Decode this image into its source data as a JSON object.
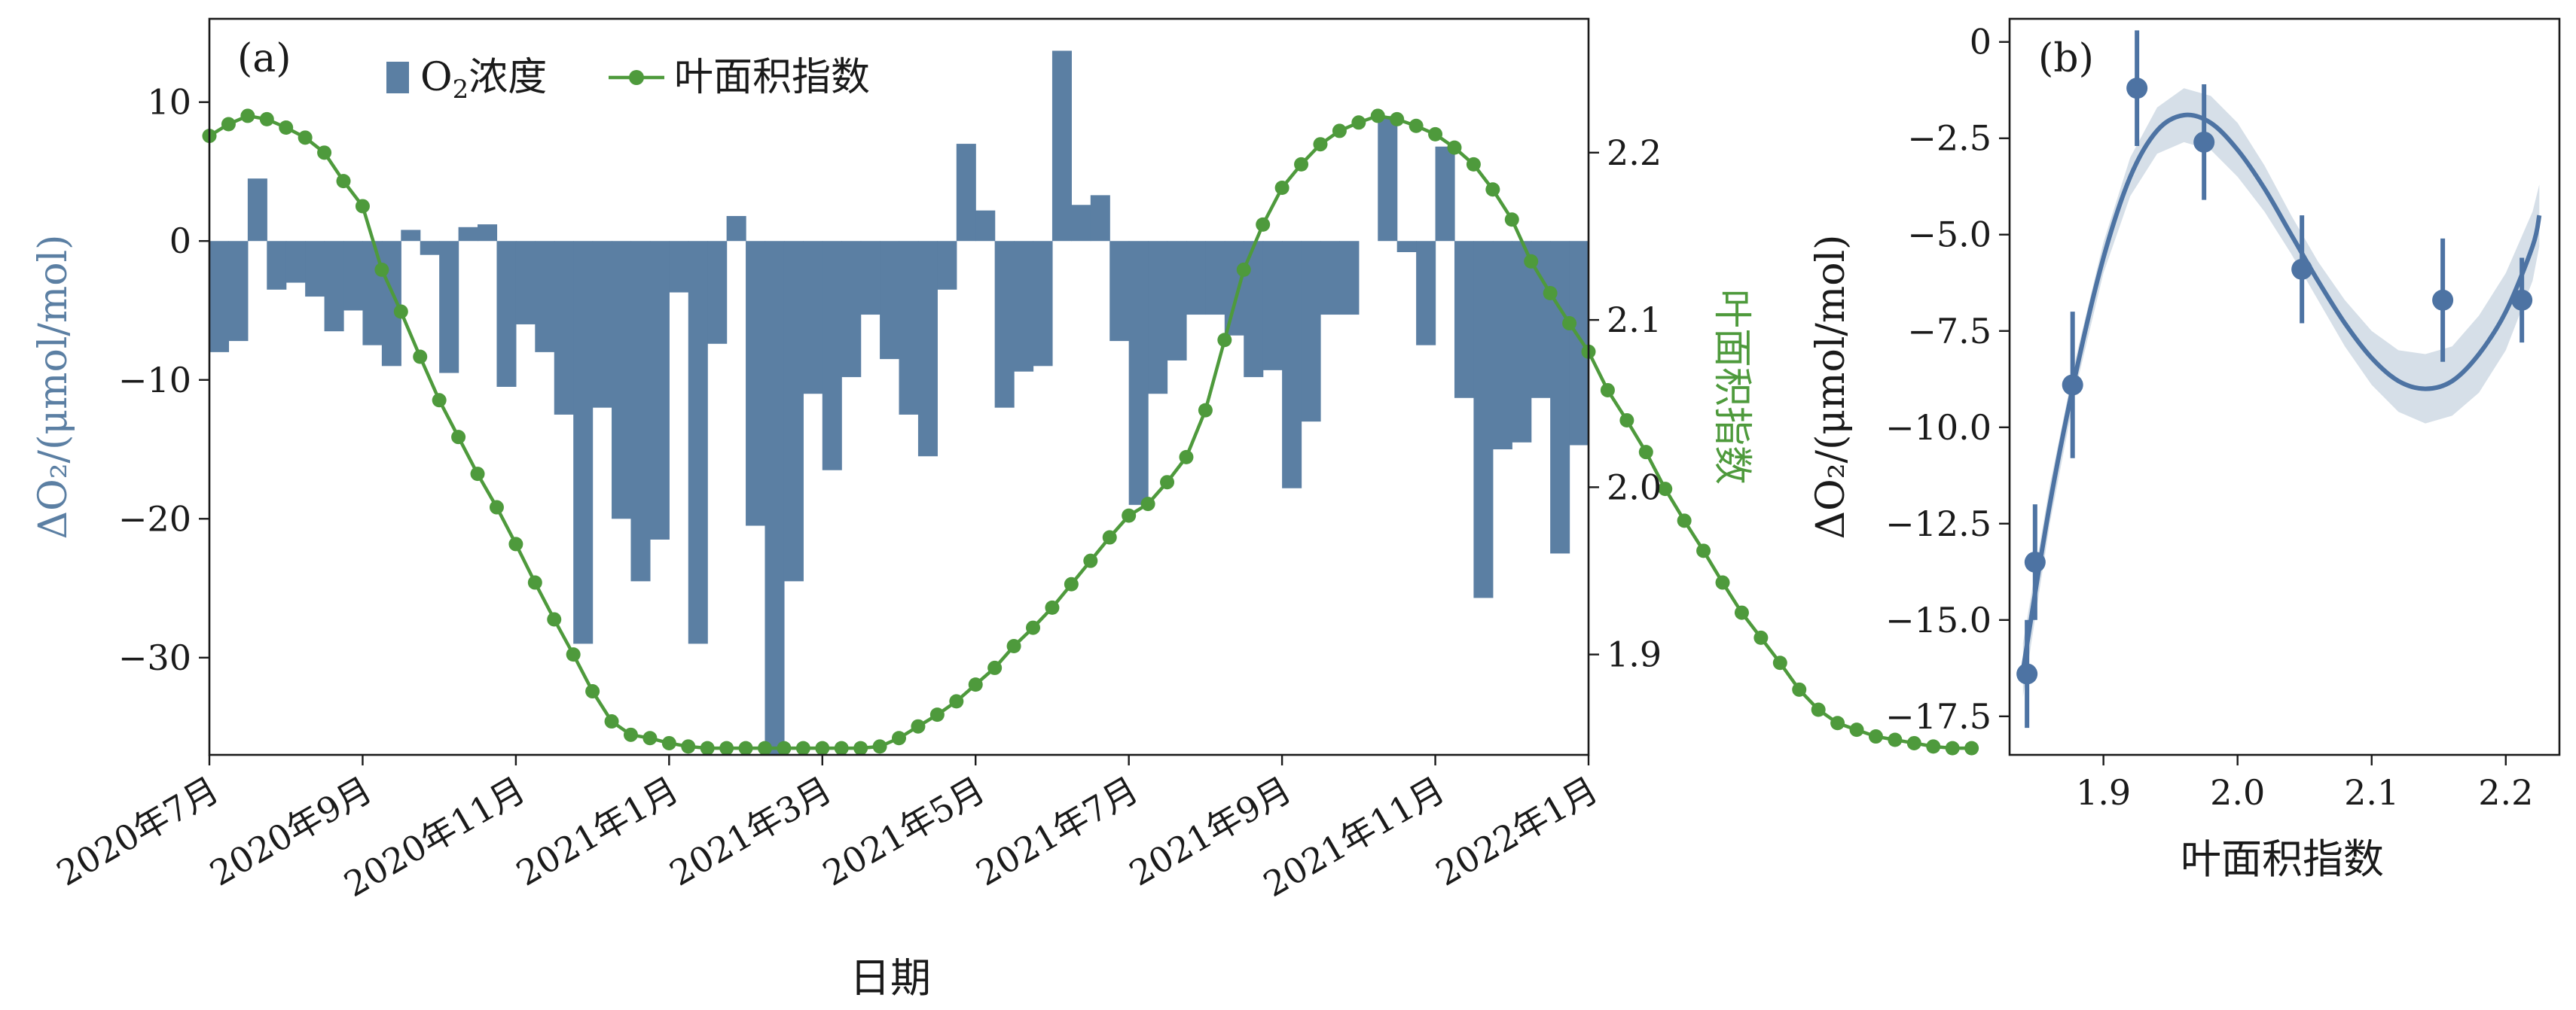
{
  "chart_data": [
    {
      "type": "bar+line",
      "panel_label": "(a)",
      "xlabel": "日期",
      "ylabel_left": "ΔO₂/(μmol/mol)",
      "ylabel_right": "叶面积指数",
      "x_tick_labels": [
        "2020年7月",
        "2020年9月",
        "2020年11月",
        "2021年1月",
        "2021年3月",
        "2021年5月",
        "2021年7月",
        "2021年9月",
        "2021年11月",
        "2022年1月"
      ],
      "x_range_months": [
        0,
        18
      ],
      "y_left": {
        "ylim": [
          -37,
          16
        ],
        "ticks": [
          10,
          0,
          -10,
          -20,
          -30
        ],
        "tick_labels": [
          "10",
          "0",
          "−10",
          "−20",
          "−30"
        ]
      },
      "y_right": {
        "ylim": [
          1.84,
          2.28
        ],
        "ticks": [
          2.2,
          2.1,
          2.0,
          1.9
        ],
        "tick_labels": [
          "2.2",
          "2.1",
          "2.0",
          "1.9"
        ]
      },
      "legend": {
        "placement": "top-left",
        "items": [
          {
            "label_main": "O",
            "label_sub": "2",
            "label_rest": "浓度",
            "color": "#5b7fa3",
            "kind": "bar"
          },
          {
            "label_main": "叶面积指数",
            "color": "#4e9a3c",
            "kind": "line-marker"
          }
        ]
      },
      "series": [
        {
          "name": "O₂浓度",
          "bar_width_months": 0.25,
          "values": [
            -8,
            -7.2,
            4.5,
            -3.5,
            -3,
            -4,
            -6.5,
            -5,
            -7.5,
            -9,
            0.8,
            -1,
            -9.5,
            1,
            1.2,
            -10.5,
            -6,
            -8,
            -12.5,
            -29,
            -12,
            -20,
            -24.5,
            -21.5,
            -3.7,
            -29,
            -7.4,
            1.8,
            -20.5,
            -37,
            -24.5,
            -11,
            -16.5,
            -9.8,
            -5.3,
            -8.5,
            -12.5,
            -15.5,
            -3.5,
            7,
            2.2,
            -12,
            -9.4,
            -9,
            13.7,
            2.6,
            3.3,
            -7.2,
            -19,
            -11,
            -8.6,
            -5.3,
            -5.3,
            -6.8,
            -9.8,
            -9.3,
            -17.8,
            -13,
            -5.3,
            -5.3,
            0,
            9,
            -0.8,
            -7.5,
            6.8,
            -11.3,
            -25.7,
            -15,
            -14.5,
            -11.3,
            -22.5,
            -14.7
          ]
        },
        {
          "name": "叶面积指数",
          "months_per_point": 0.25,
          "values": [
            2.21,
            2.217,
            2.222,
            2.22,
            2.215,
            2.209,
            2.2,
            2.183,
            2.168,
            2.13,
            2.105,
            2.078,
            2.052,
            2.03,
            2.008,
            1.988,
            1.966,
            1.943,
            1.921,
            1.9,
            1.878,
            1.86,
            1.852,
            1.85,
            1.847,
            1.845,
            1.844,
            1.844,
            1.844,
            1.844,
            1.844,
            1.844,
            1.844,
            1.844,
            1.844,
            1.845,
            1.85,
            1.857,
            1.864,
            1.872,
            1.882,
            1.892,
            1.905,
            1.916,
            1.928,
            1.942,
            1.956,
            1.97,
            1.983,
            1.99,
            2.003,
            2.018,
            2.046,
            2.088,
            2.13,
            2.157,
            2.179,
            2.193,
            2.205,
            2.213,
            2.218,
            2.222,
            2.22,
            2.216,
            2.211,
            2.203,
            2.193,
            2.178,
            2.16,
            2.135,
            2.116,
            2.098,
            2.081,
            2.058,
            2.04,
            2.021,
            1.999,
            1.98,
            1.962,
            1.943,
            1.925,
            1.91,
            1.895,
            1.879,
            1.867,
            1.859,
            1.855,
            1.851,
            1.849,
            1.847,
            1.845,
            1.844,
            1.844
          ]
        }
      ]
    },
    {
      "type": "scatter+line",
      "panel_label": "(b)",
      "xlabel": "叶面积指数",
      "ylabel": "ΔO₂/(μmol/mol)",
      "xlim": [
        1.83,
        2.24
      ],
      "ylim": [
        -18.5,
        0.6
      ],
      "x_ticks": [
        1.9,
        2.0,
        2.1,
        2.2
      ],
      "x_tick_labels": [
        "1.9",
        "2.0",
        "2.1",
        "2.2"
      ],
      "y_ticks": [
        0,
        -2.5,
        -5,
        -7.5,
        -10,
        -12.5,
        -15,
        -17.5
      ],
      "y_tick_labels": [
        "0",
        "−2.5",
        "−5.0",
        "−7.5",
        "−10.0",
        "−12.5",
        "−15.0",
        "−17.5"
      ],
      "points": [
        {
          "x": 1.843,
          "y": -16.4,
          "err": 1.4
        },
        {
          "x": 1.849,
          "y": -13.5,
          "err": 1.5
        },
        {
          "x": 1.877,
          "y": -8.9,
          "err": 1.9
        },
        {
          "x": 1.925,
          "y": -1.2,
          "err": 1.5
        },
        {
          "x": 1.975,
          "y": -2.6,
          "err": 1.5
        },
        {
          "x": 2.048,
          "y": -5.9,
          "err": 1.4
        },
        {
          "x": 2.153,
          "y": -6.7,
          "err": 1.6
        },
        {
          "x": 2.212,
          "y": -6.7,
          "err": 1.1
        }
      ],
      "fit_curve": {
        "x": [
          1.84,
          1.86,
          1.88,
          1.9,
          1.92,
          1.94,
          1.96,
          1.98,
          2.0,
          2.02,
          2.04,
          2.06,
          2.08,
          2.1,
          2.12,
          2.14,
          2.16,
          2.18,
          2.2,
          2.22,
          2.225
        ],
        "y": [
          -16.3,
          -12.0,
          -8.5,
          -5.6,
          -3.5,
          -2.3,
          -1.9,
          -2.1,
          -2.8,
          -3.8,
          -5.0,
          -6.2,
          -7.3,
          -8.2,
          -8.8,
          -9.0,
          -8.8,
          -8.1,
          -7.0,
          -5.3,
          -4.5
        ]
      },
      "ci_band": {
        "x": [
          1.84,
          1.86,
          1.88,
          1.9,
          1.92,
          1.94,
          1.96,
          1.98,
          2.0,
          2.02,
          2.04,
          2.06,
          2.08,
          2.1,
          2.12,
          2.14,
          2.16,
          2.18,
          2.2,
          2.22,
          2.225
        ],
        "lower": [
          -17.0,
          -12.5,
          -8.9,
          -6.0,
          -4.0,
          -2.9,
          -2.6,
          -2.8,
          -3.5,
          -4.4,
          -5.5,
          -6.7,
          -7.9,
          -8.9,
          -9.6,
          -9.9,
          -9.7,
          -9.1,
          -8.0,
          -6.2,
          -5.3
        ],
        "upper": [
          -15.6,
          -11.5,
          -8.1,
          -5.2,
          -3.0,
          -1.7,
          -1.2,
          -1.4,
          -2.1,
          -3.2,
          -4.5,
          -5.7,
          -6.7,
          -7.5,
          -8.0,
          -8.1,
          -7.9,
          -7.1,
          -6.0,
          -4.4,
          -3.7
        ]
      }
    }
  ]
}
